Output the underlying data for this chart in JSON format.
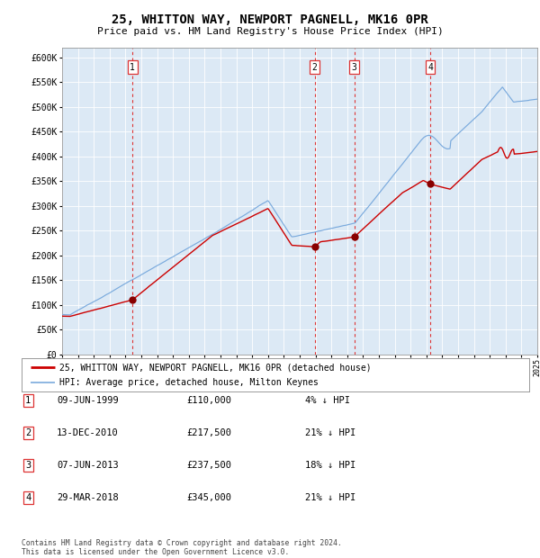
{
  "title": "25, WHITTON WAY, NEWPORT PAGNELL, MK16 0PR",
  "subtitle": "Price paid vs. HM Land Registry's House Price Index (HPI)",
  "background_color": "#dce9f5",
  "plot_bg_color": "#dce9f5",
  "fig_bg_color": "#ffffff",
  "hpi_color": "#7aaadd",
  "price_color": "#cc0000",
  "sale_marker_color": "#880000",
  "vline_color": "#dd3333",
  "ylim": [
    0,
    620000
  ],
  "yticks": [
    0,
    50000,
    100000,
    150000,
    200000,
    250000,
    300000,
    350000,
    400000,
    450000,
    500000,
    550000,
    600000
  ],
  "xlim": [
    1995,
    2025
  ],
  "sales": [
    {
      "label": "1",
      "date_idx": 1999.44,
      "price": 110000
    },
    {
      "label": "2",
      "date_idx": 2010.95,
      "price": 217500
    },
    {
      "label": "3",
      "date_idx": 2013.44,
      "price": 237500
    },
    {
      "label": "4",
      "date_idx": 2018.24,
      "price": 345000
    }
  ],
  "legend_entries": [
    "25, WHITTON WAY, NEWPORT PAGNELL, MK16 0PR (detached house)",
    "HPI: Average price, detached house, Milton Keynes"
  ],
  "table_rows": [
    {
      "num": "1",
      "date": "09-JUN-1999",
      "price": "£110,000",
      "pct": "4% ↓ HPI"
    },
    {
      "num": "2",
      "date": "13-DEC-2010",
      "price": "£217,500",
      "pct": "21% ↓ HPI"
    },
    {
      "num": "3",
      "date": "07-JUN-2013",
      "price": "£237,500",
      "pct": "18% ↓ HPI"
    },
    {
      "num": "4",
      "date": "29-MAR-2018",
      "price": "£345,000",
      "pct": "21% ↓ HPI"
    }
  ],
  "footer": "Contains HM Land Registry data © Crown copyright and database right 2024.\nThis data is licensed under the Open Government Licence v3.0."
}
